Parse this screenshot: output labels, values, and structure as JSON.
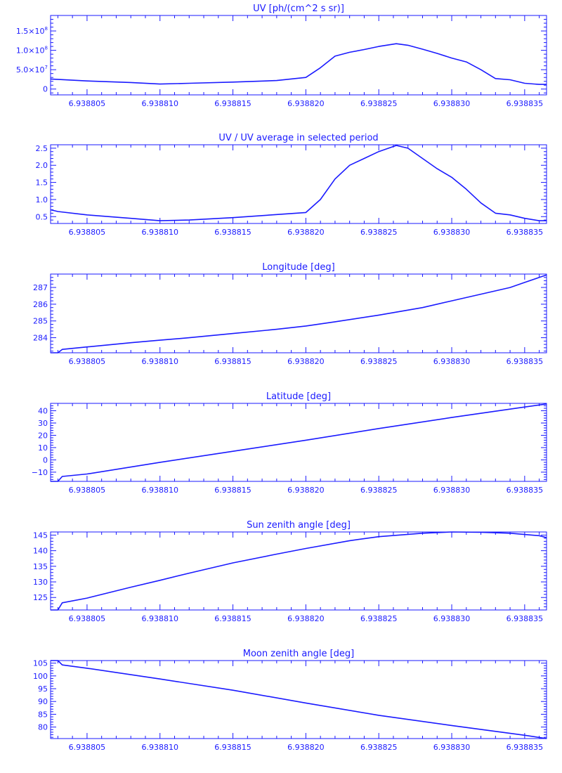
{
  "colors": {
    "line": "#1a1aff",
    "background": "#ffffff"
  },
  "chart_data": [
    {
      "type": "line",
      "title": "UV [ph/(cm^2 s sr)]",
      "xlabel": "",
      "ylabel": "",
      "xlim": [
        6.9388025,
        6.9388365
      ],
      "ylim": [
        -15000000,
        190000000
      ],
      "x_ticks": [
        6.938805,
        6.93881,
        6.938815,
        6.93882,
        6.938825,
        6.93883,
        6.938835
      ],
      "x_tick_labels": [
        "6.938805",
        "6.938810",
        "6.938815",
        "6.938820",
        "6.938825",
        "6.938830",
        "6.938835"
      ],
      "y_ticks": [
        0,
        50000000,
        100000000,
        150000000
      ],
      "y_tick_labels": [
        "0",
        "5.0×10",
        "1.0×10",
        "1.5×10"
      ],
      "y_tick_exponents": [
        "",
        "7",
        "8",
        "8"
      ],
      "grid": false,
      "series": [
        {
          "x": [
            6.9388025,
            6.938805,
            6.938808,
            6.93881,
            6.938812,
            6.938815,
            6.938818,
            6.93882,
            6.938821,
            6.938822,
            6.938823,
            6.938824,
            6.938825,
            6.9388262,
            6.938827,
            6.938828,
            6.938829,
            6.93883,
            6.938831,
            6.938832,
            6.938833,
            6.938834,
            6.938835,
            6.938836,
            6.9388365
          ],
          "y": [
            26000000,
            21000000,
            17000000,
            13000000,
            15000000,
            18000000,
            22000000,
            30000000,
            55000000,
            85000000,
            95000000,
            102000000,
            110000000,
            117000000,
            113000000,
            103000000,
            92000000,
            80000000,
            70000000,
            50000000,
            27000000,
            24000000,
            15000000,
            12000000,
            12000000
          ]
        }
      ]
    },
    {
      "type": "line",
      "title": "UV / UV average in selected period",
      "xlabel": "",
      "ylabel": "",
      "xlim": [
        6.9388025,
        6.9388365
      ],
      "ylim": [
        0.3,
        2.6
      ],
      "x_ticks": [
        6.938805,
        6.93881,
        6.938815,
        6.93882,
        6.938825,
        6.93883,
        6.938835
      ],
      "x_tick_labels": [
        "6.938805",
        "6.938810",
        "6.938815",
        "6.938820",
        "6.938825",
        "6.938830",
        "6.938835"
      ],
      "y_ticks": [
        0.5,
        1.0,
        1.5,
        2.0,
        2.5
      ],
      "y_tick_labels": [
        "0.5",
        "1.0",
        "1.5",
        "2.0",
        "2.5"
      ],
      "grid": false,
      "series": [
        {
          "x": [
            6.9388025,
            6.938803,
            6.938805,
            6.938808,
            6.93881,
            6.938812,
            6.938815,
            6.938818,
            6.93882,
            6.938821,
            6.938822,
            6.938823,
            6.938824,
            6.938825,
            6.9388262,
            6.938827,
            6.938828,
            6.938829,
            6.93883,
            6.938831,
            6.938832,
            6.938833,
            6.938834,
            6.938835,
            6.938836,
            6.9388365
          ],
          "y": [
            0.7,
            0.65,
            0.55,
            0.45,
            0.38,
            0.4,
            0.47,
            0.56,
            0.62,
            1.0,
            1.6,
            2.0,
            2.2,
            2.4,
            2.58,
            2.5,
            2.2,
            1.9,
            1.65,
            1.3,
            0.9,
            0.6,
            0.55,
            0.45,
            0.38,
            0.38
          ]
        }
      ]
    },
    {
      "type": "line",
      "title": "Longitude [deg]",
      "xlabel": "",
      "ylabel": "",
      "xlim": [
        6.9388025,
        6.9388365
      ],
      "ylim": [
        283.1,
        287.8
      ],
      "x_ticks": [
        6.938805,
        6.93881,
        6.938815,
        6.93882,
        6.938825,
        6.93883,
        6.938835
      ],
      "x_tick_labels": [
        "6.938805",
        "6.938810",
        "6.938815",
        "6.938820",
        "6.938825",
        "6.938830",
        "6.938835"
      ],
      "y_ticks": [
        284,
        285,
        286,
        287
      ],
      "y_tick_labels": [
        "284",
        "285",
        "286",
        "287"
      ],
      "grid": false,
      "series": [
        {
          "x": [
            6.9388025,
            6.938803,
            6.9388033,
            6.938805,
            6.938808,
            6.93881,
            6.938812,
            6.938815,
            6.938818,
            6.93882,
            6.938822,
            6.938825,
            6.938828,
            6.93883,
            6.938832,
            6.938834,
            6.938835,
            6.938836,
            6.9388365
          ],
          "y": [
            283.1,
            283.1,
            283.3,
            283.45,
            283.7,
            283.85,
            284.0,
            284.25,
            284.5,
            284.7,
            284.95,
            285.35,
            285.8,
            286.2,
            286.6,
            287.0,
            287.3,
            287.6,
            287.75
          ]
        }
      ]
    },
    {
      "type": "line",
      "title": "Latitude [deg]",
      "xlabel": "",
      "ylabel": "",
      "xlim": [
        6.9388025,
        6.9388365
      ],
      "ylim": [
        -17.5,
        46
      ],
      "x_ticks": [
        6.938805,
        6.93881,
        6.938815,
        6.93882,
        6.938825,
        6.93883,
        6.938835
      ],
      "x_tick_labels": [
        "6.938805",
        "6.938810",
        "6.938815",
        "6.938820",
        "6.938825",
        "6.938830",
        "6.938835"
      ],
      "y_ticks": [
        -10,
        0,
        10,
        20,
        30,
        40
      ],
      "y_tick_labels": [
        "−10",
        "0",
        "10",
        "20",
        "30",
        "40"
      ],
      "grid": false,
      "series": [
        {
          "x": [
            6.9388025,
            6.938803,
            6.9388033,
            6.938805,
            6.93881,
            6.938815,
            6.93882,
            6.938825,
            6.93883,
            6.938835,
            6.9388365
          ],
          "y": [
            -17.5,
            -17.5,
            -13.5,
            -11.5,
            -2,
            7,
            16,
            25.5,
            34.5,
            43,
            45.5
          ]
        }
      ]
    },
    {
      "type": "line",
      "title": "Sun zenith angle [deg]",
      "xlabel": "",
      "ylabel": "",
      "xlim": [
        6.9388025,
        6.9388365
      ],
      "ylim": [
        121,
        146
      ],
      "x_ticks": [
        6.938805,
        6.93881,
        6.938815,
        6.93882,
        6.938825,
        6.93883,
        6.938835
      ],
      "x_tick_labels": [
        "6.938805",
        "6.938810",
        "6.938815",
        "6.938820",
        "6.938825",
        "6.938830",
        "6.938835"
      ],
      "y_ticks": [
        125,
        130,
        135,
        140,
        145
      ],
      "y_tick_labels": [
        "125",
        "130",
        "135",
        "140",
        "145"
      ],
      "grid": false,
      "series": [
        {
          "x": [
            6.9388025,
            6.938803,
            6.9388033,
            6.938805,
            6.938808,
            6.93881,
            6.938812,
            6.938815,
            6.938818,
            6.93882,
            6.938823,
            6.938825,
            6.938828,
            6.93883,
            6.938832,
            6.938834,
            6.938836,
            6.9388365
          ],
          "y": [
            121,
            121,
            123.3,
            124.8,
            128.3,
            130.5,
            132.8,
            136.1,
            138.9,
            140.7,
            143.2,
            144.5,
            145.6,
            146,
            145.9,
            145.6,
            144.8,
            144.2
          ]
        }
      ]
    },
    {
      "type": "line",
      "title": "Moon zenith angle [deg]",
      "xlabel": "",
      "ylabel": "",
      "xlim": [
        6.9388025,
        6.9388365
      ],
      "ylim": [
        75.5,
        106
      ],
      "x_ticks": [
        6.938805,
        6.93881,
        6.938815,
        6.93882,
        6.938825,
        6.93883,
        6.938835
      ],
      "x_tick_labels": [
        "6.938805",
        "6.938810",
        "6.938815",
        "6.938820",
        "6.938825",
        "6.938830",
        "6.938835"
      ],
      "y_ticks": [
        80,
        85,
        90,
        95,
        100,
        105
      ],
      "y_tick_labels": [
        "80",
        "85",
        "90",
        "95",
        "100",
        "105"
      ],
      "grid": false,
      "series": [
        {
          "x": [
            6.9388025,
            6.938803,
            6.9388033,
            6.938805,
            6.93881,
            6.938815,
            6.93882,
            6.938825,
            6.93883,
            6.938835,
            6.9388365
          ],
          "y": [
            106,
            106,
            104.3,
            103,
            98.8,
            94.4,
            89.4,
            84.6,
            80.6,
            76.8,
            75.5
          ]
        }
      ]
    }
  ]
}
